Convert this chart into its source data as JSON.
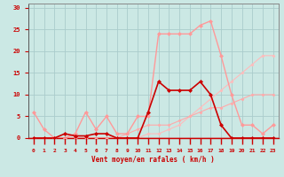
{
  "background_color": "#cbe8e4",
  "grid_color": "#aacccc",
  "x_label": "Vent moyen/en rafales ( km/h )",
  "x_ticks": [
    0,
    1,
    2,
    3,
    4,
    5,
    6,
    7,
    8,
    9,
    10,
    11,
    12,
    13,
    14,
    15,
    16,
    17,
    18,
    19,
    20,
    21,
    22,
    23
  ],
  "y_ticks": [
    0,
    5,
    10,
    15,
    20,
    25,
    30
  ],
  "ylim": [
    0,
    31
  ],
  "xlim": [
    -0.5,
    23.5
  ],
  "series": [
    {
      "x": [
        0,
        1,
        2,
        3,
        4,
        5,
        6,
        7,
        8,
        9,
        10,
        11,
        12,
        13,
        14,
        15,
        16,
        17,
        18,
        19,
        20,
        21,
        22,
        23
      ],
      "y": [
        0,
        0,
        0,
        1,
        0.5,
        0.5,
        1,
        1,
        0,
        0,
        0,
        6,
        13,
        11,
        11,
        11,
        13,
        10,
        3,
        0,
        0,
        0,
        0,
        0
      ],
      "color": "#cc0000",
      "marker": "D",
      "markersize": 2.0,
      "linewidth": 1.2,
      "zorder": 5
    },
    {
      "x": [
        0,
        1,
        2,
        3,
        4,
        5,
        6,
        7,
        8,
        9,
        10,
        11,
        12,
        13,
        14,
        15,
        16,
        17,
        18,
        19,
        20,
        21,
        22,
        23
      ],
      "y": [
        6,
        2,
        0,
        0,
        1,
        6,
        2,
        5,
        1,
        1,
        5,
        5,
        24,
        24,
        24,
        24,
        26,
        27,
        19,
        10,
        3,
        3,
        1,
        3
      ],
      "color": "#ff9999",
      "marker": "D",
      "markersize": 2.0,
      "linewidth": 1.0,
      "zorder": 4
    },
    {
      "x": [
        0,
        1,
        2,
        3,
        4,
        5,
        6,
        7,
        8,
        9,
        10,
        11,
        12,
        13,
        14,
        15,
        16,
        17,
        18,
        19,
        20,
        21,
        22,
        23
      ],
      "y": [
        0,
        0,
        0,
        0,
        0,
        0,
        0,
        0,
        0,
        0,
        0,
        1,
        1,
        2,
        3,
        5,
        7,
        9,
        11,
        13,
        15,
        17,
        19,
        19
      ],
      "color": "#ffbbbb",
      "marker": "D",
      "markersize": 1.5,
      "linewidth": 0.8,
      "zorder": 3
    },
    {
      "x": [
        0,
        1,
        2,
        3,
        4,
        5,
        6,
        7,
        8,
        9,
        10,
        11,
        12,
        13,
        14,
        15,
        16,
        17,
        18,
        19,
        20,
        21,
        22,
        23
      ],
      "y": [
        0,
        0,
        0,
        0,
        0,
        0,
        0,
        0,
        0,
        1,
        2,
        3,
        3,
        3,
        4,
        5,
        6,
        7,
        7,
        8,
        9,
        10,
        10,
        10
      ],
      "color": "#ffaaaa",
      "marker": "D",
      "markersize": 1.5,
      "linewidth": 0.8,
      "zorder": 3
    }
  ],
  "arrow_color": "#cc0000",
  "tick_label_color": "#cc0000",
  "axis_label_color": "#cc0000"
}
